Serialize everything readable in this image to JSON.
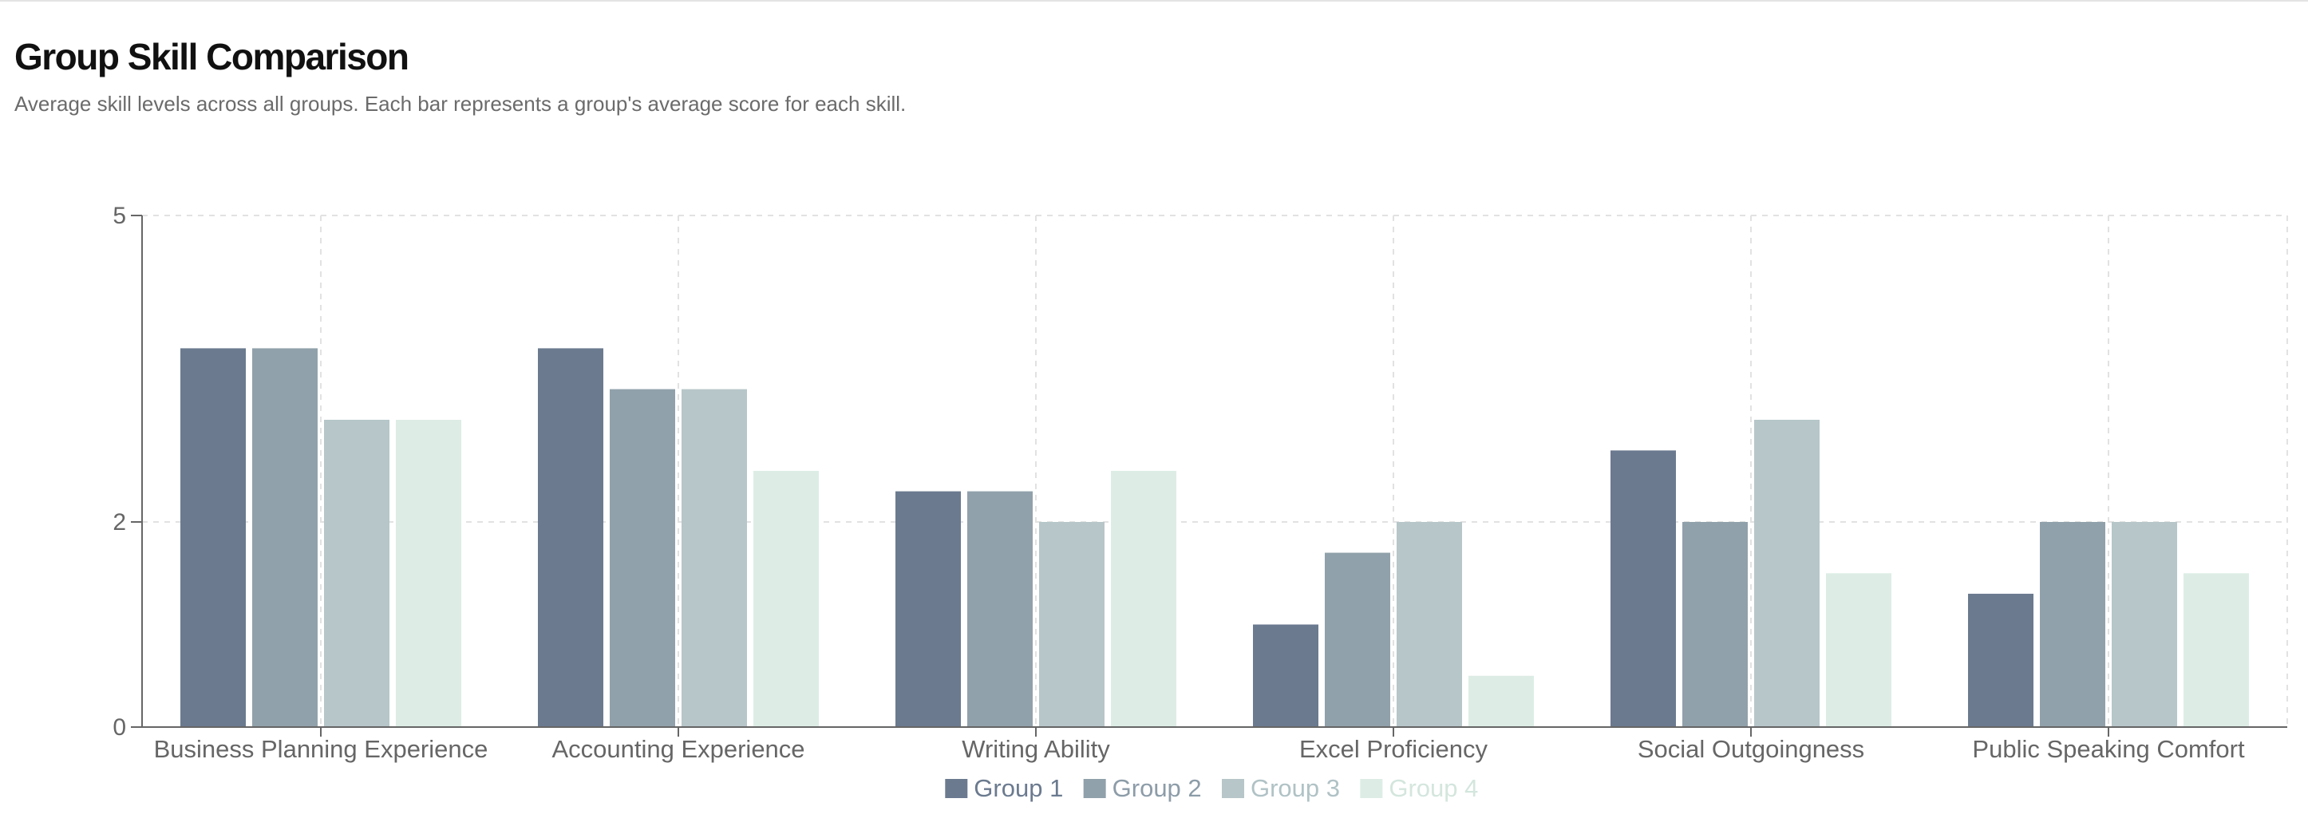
{
  "page": {
    "title": "Group Skill Comparison",
    "subtitle": "Average skill levels across all groups. Each bar represents a group's average score for each skill."
  },
  "chart_data": {
    "type": "bar",
    "categories": [
      "Business Planning Experience",
      "Accounting Experience",
      "Writing Ability",
      "Excel Proficiency",
      "Social Outgoingness",
      "Public Speaking Comfort"
    ],
    "series": [
      {
        "name": "Group 1",
        "color": "#6b7a8f",
        "values": [
          3.7,
          3.7,
          2.3,
          1.0,
          2.7,
          1.3
        ]
      },
      {
        "name": "Group 2",
        "color": "#91a1ab",
        "values": [
          3.7,
          3.3,
          2.3,
          1.7,
          2.0,
          2.0
        ]
      },
      {
        "name": "Group 3",
        "color": "#b6c6c9",
        "values": [
          3.0,
          3.3,
          2.0,
          2.0,
          3.0,
          2.0
        ]
      },
      {
        "name": "Group 4",
        "color": "#ddede6",
        "values": [
          3.0,
          2.5,
          2.5,
          0.5,
          1.5,
          1.5
        ]
      }
    ],
    "yticks": [
      "0",
      "2",
      "5"
    ],
    "ylim": [
      0,
      5
    ],
    "xlabel": "",
    "ylabel": "",
    "grid": true,
    "legend_position": "bottom-center"
  }
}
